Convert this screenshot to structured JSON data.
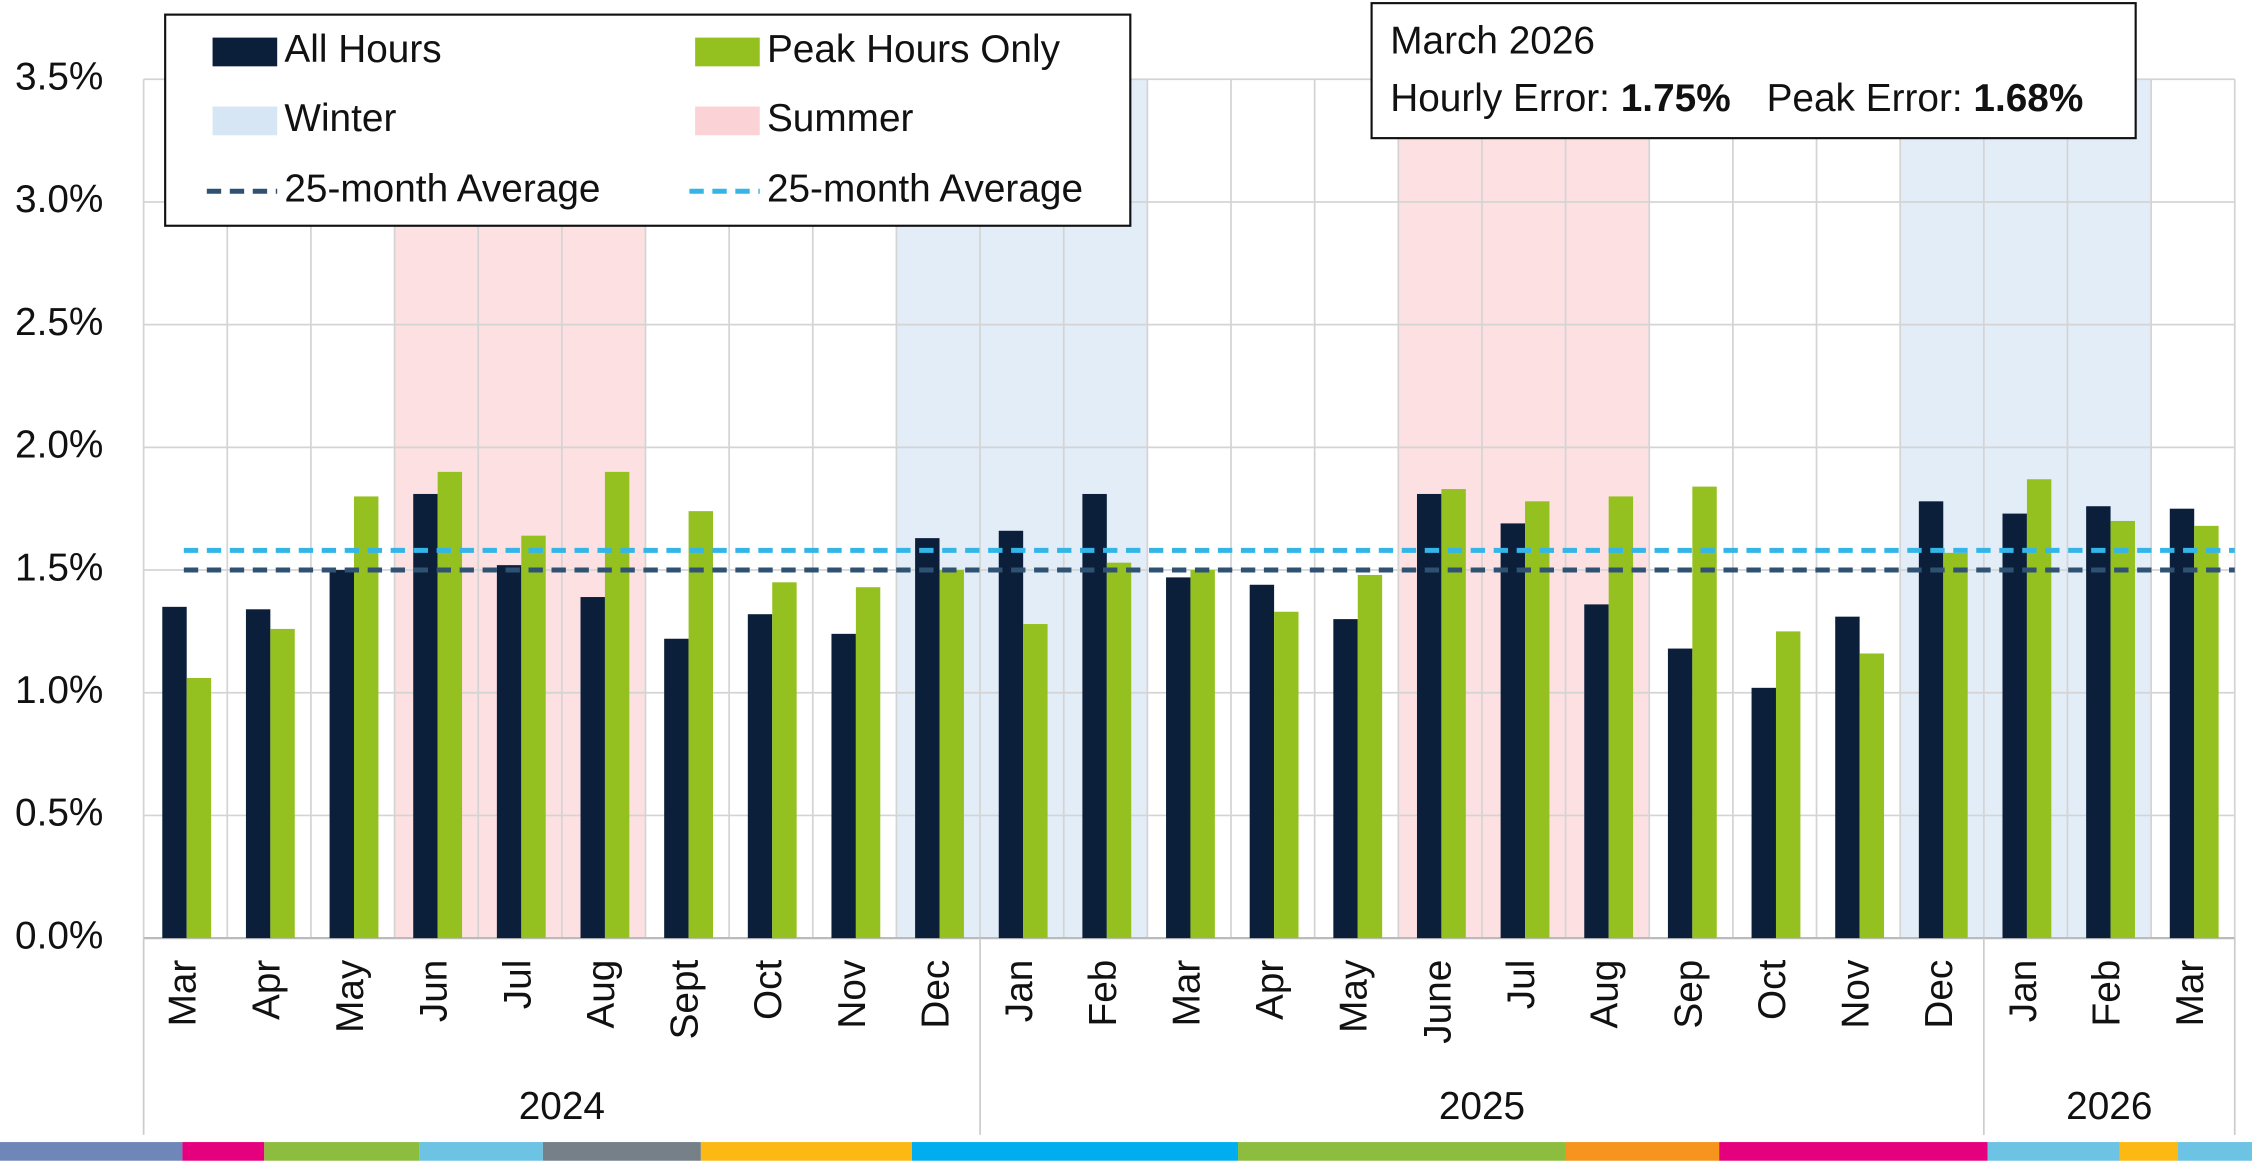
{
  "chart_data": {
    "type": "bar",
    "categories": [
      "Mar",
      "Apr",
      "May",
      "Jun",
      "Jul",
      "Aug",
      "Sept",
      "Oct",
      "Nov",
      "Dec",
      "Jan",
      "Feb",
      "Mar",
      "Apr",
      "May",
      "June",
      "Jul",
      "Aug",
      "Sep",
      "Oct",
      "Nov",
      "Dec",
      "Jan",
      "Feb",
      "Mar"
    ],
    "years": [
      "2024",
      "2024",
      "2024",
      "2024",
      "2024",
      "2024",
      "2024",
      "2024",
      "2024",
      "2024",
      "2025",
      "2025",
      "2025",
      "2025",
      "2025",
      "2025",
      "2025",
      "2025",
      "2025",
      "2025",
      "2025",
      "2025",
      "2026",
      "2026",
      "2026"
    ],
    "seasons": [
      null,
      null,
      null,
      "Summer",
      "Summer",
      "Summer",
      null,
      null,
      null,
      "Winter",
      "Winter",
      "Winter",
      null,
      null,
      null,
      "Summer",
      "Summer",
      "Summer",
      null,
      null,
      null,
      "Winter",
      "Winter",
      "Winter",
      null
    ],
    "series": [
      {
        "name": "All Hours",
        "color": "#0b1f3a",
        "values": [
          1.35,
          1.34,
          1.5,
          1.81,
          1.52,
          1.39,
          1.22,
          1.32,
          1.24,
          1.63,
          1.66,
          1.81,
          1.47,
          1.44,
          1.3,
          1.81,
          1.69,
          1.36,
          1.18,
          1.02,
          1.31,
          1.78,
          1.73,
          1.76,
          1.75
        ]
      },
      {
        "name": "Peak Hours Only",
        "color": "#94c11f",
        "values": [
          1.06,
          1.26,
          1.8,
          1.9,
          1.64,
          1.9,
          1.74,
          1.45,
          1.43,
          1.5,
          1.28,
          1.53,
          1.5,
          1.33,
          1.48,
          1.83,
          1.78,
          1.8,
          1.84,
          1.25,
          1.16,
          1.57,
          1.87,
          1.7,
          1.68
        ]
      }
    ],
    "season_legend": [
      {
        "name": "Winter",
        "color": "#d6e6f5"
      },
      {
        "name": "Summer",
        "color": "#fbd3d6"
      }
    ],
    "averages": [
      {
        "name": "25-month Average",
        "color": "#2f5272",
        "value": 1.5
      },
      {
        "name": "25-month Average",
        "color": "#33b5e8",
        "value": 1.58
      }
    ],
    "annotation": {
      "title": "March 2026",
      "hourly_label": "Hourly Error:",
      "hourly_value": "1.75%",
      "peak_label": "Peak Error:",
      "peak_value": "1.68%"
    },
    "ylim": [
      0,
      3.5
    ],
    "yticks": [
      {
        "value": 0,
        "label": "0.0%"
      },
      {
        "value": 0.5,
        "label": "0.5%"
      },
      {
        "value": 1,
        "label": "1.0%"
      },
      {
        "value": 1.5,
        "label": "1.5%"
      },
      {
        "value": 2,
        "label": "2.0%"
      },
      {
        "value": 2.5,
        "label": "2.5%"
      },
      {
        "value": 3,
        "label": "3.0%"
      },
      {
        "value": 3.5,
        "label": "3.5%"
      }
    ],
    "grid": true
  }
}
